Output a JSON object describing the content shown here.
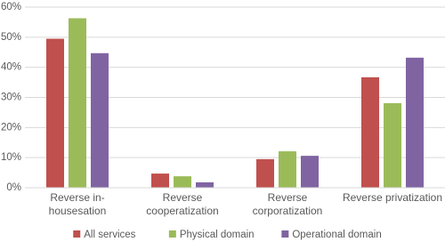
{
  "chart_data": {
    "type": "bar",
    "categories": [
      "Reverse in-housesation",
      "Reverse cooperatization",
      "Reverse corporatization",
      "Reverse privatization"
    ],
    "series": [
      {
        "name": "All services",
        "color": "#c0504d",
        "values": [
          49.5,
          4.7,
          9.5,
          36.7
        ]
      },
      {
        "name": "Physical domain",
        "color": "#9bbb59",
        "values": [
          56.3,
          3.8,
          12.1,
          28.1
        ]
      },
      {
        "name": "Operational domain",
        "color": "#8064a2",
        "values": [
          44.7,
          1.8,
          10.6,
          43.2
        ]
      }
    ],
    "ylim": [
      0,
      60
    ],
    "yticks": [
      {
        "value": 0,
        "label": "0%"
      },
      {
        "value": 10,
        "label": "10%"
      },
      {
        "value": 20,
        "label": "20%"
      },
      {
        "value": 30,
        "label": "30%"
      },
      {
        "value": 40,
        "label": "40%"
      },
      {
        "value": 50,
        "label": "50%"
      },
      {
        "value": 60,
        "label": "60%"
      }
    ],
    "grid": true,
    "legend": "bottom"
  }
}
